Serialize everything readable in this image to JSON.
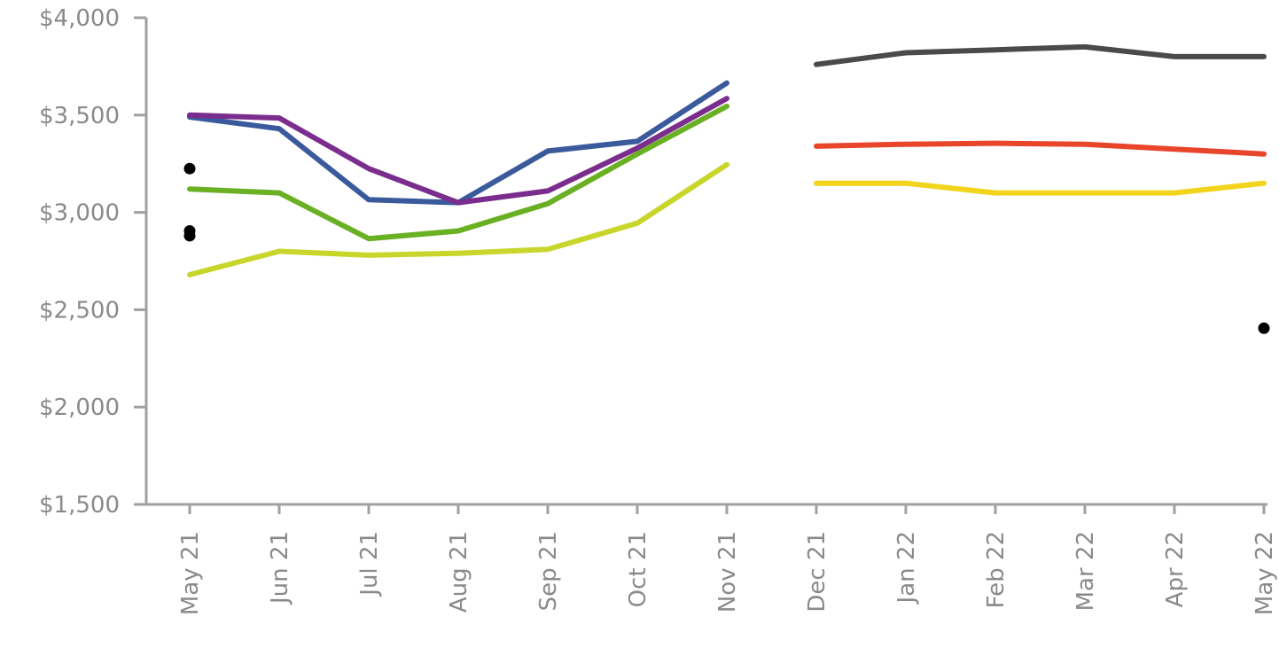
{
  "chart_data": {
    "type": "line",
    "title": "",
    "xlabel": "",
    "ylabel": "",
    "ylim": [
      1500,
      4000
    ],
    "yticks": [
      4000,
      3500,
      3000,
      2500,
      2000,
      1500
    ],
    "ytick_labels": [
      "$4,000",
      "$3,500",
      "$3,000",
      "$2,500",
      "$2,000",
      "$1,500"
    ],
    "categories": [
      "May 21",
      "Jun 21",
      "Jul 21",
      "Aug 21",
      "Sep 21",
      "Oct 21",
      "Nov 21",
      "Dec 21",
      "Jan 22",
      "Feb 22",
      "Mar 22",
      "Apr 22",
      "May 22"
    ],
    "grid": false,
    "legend": "none",
    "series": [
      {
        "color": "#3a5a9c",
        "values": [
          3490,
          3430,
          3065,
          3050,
          3315,
          3365,
          3665,
          null,
          null,
          null,
          null,
          null,
          null
        ]
      },
      {
        "color": "#7b2d8e",
        "values": [
          3500,
          3485,
          3225,
          3050,
          3110,
          3330,
          3585,
          null,
          null,
          null,
          null,
          null,
          null
        ]
      },
      {
        "color": "#6ab023",
        "values": [
          3120,
          3100,
          2865,
          2905,
          3045,
          3300,
          3545,
          null,
          null,
          null,
          null,
          null,
          null
        ]
      },
      {
        "color": "#c8d62b",
        "values": [
          2680,
          2800,
          2780,
          2790,
          2810,
          2945,
          3245,
          null,
          null,
          null,
          null,
          null,
          null
        ]
      },
      {
        "color": "#4a4a4a",
        "values": [
          null,
          null,
          null,
          null,
          null,
          null,
          null,
          3760,
          3820,
          3835,
          3850,
          3800,
          3800
        ]
      },
      {
        "color": "#e8452b",
        "values": [
          null,
          null,
          null,
          null,
          null,
          null,
          null,
          3340,
          3350,
          3355,
          3350,
          3325,
          3300
        ]
      },
      {
        "color": "#f2d41c",
        "values": [
          null,
          null,
          null,
          null,
          null,
          null,
          null,
          3150,
          3150,
          3100,
          3100,
          3100,
          3150
        ]
      }
    ],
    "points": [
      {
        "category": "May 21",
        "value": 3225
      },
      {
        "category": "May 21",
        "value": 2905
      },
      {
        "category": "May 21",
        "value": 2880
      },
      {
        "category": "May 22",
        "value": 2405
      }
    ],
    "point_color": "#000000"
  }
}
